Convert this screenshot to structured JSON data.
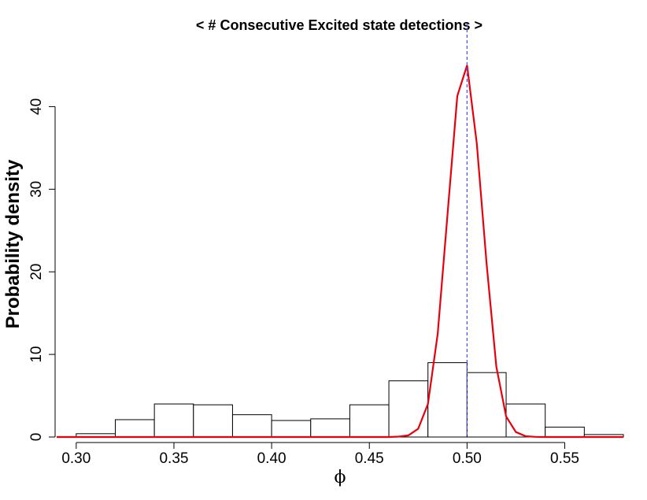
{
  "chart_data": {
    "type": "bar",
    "title": "< # Consecutive Excited state detections >",
    "xlabel": "ϕ",
    "ylabel": "Probability density",
    "xlim": [
      0.29,
      0.58
    ],
    "ylim": [
      0,
      47
    ],
    "x_ticks": [
      "0.30",
      "0.35",
      "0.40",
      "0.45",
      "0.50",
      "0.55"
    ],
    "x_tick_values": [
      0.3,
      0.35,
      0.4,
      0.45,
      0.5,
      0.55
    ],
    "y_ticks": [
      "0",
      "10",
      "20",
      "30",
      "40"
    ],
    "y_tick_values": [
      0,
      10,
      20,
      30,
      40
    ],
    "grid": false,
    "histogram": {
      "bin_edges": [
        0.3,
        0.32,
        0.34,
        0.36,
        0.38,
        0.4,
        0.42,
        0.44,
        0.46,
        0.48,
        0.5,
        0.52,
        0.54,
        0.56,
        0.58
      ],
      "density": [
        0.4,
        2.1,
        4.0,
        3.9,
        2.7,
        2.0,
        2.2,
        3.9,
        6.8,
        9.0,
        7.8,
        4.0,
        1.2,
        0.3
      ],
      "fill": "#ffffff",
      "stroke": "#000000"
    },
    "series": [
      {
        "type": "line",
        "color": "#e8000b",
        "x": [
          0.29,
          0.46,
          0.465,
          0.47,
          0.475,
          0.48,
          0.485,
          0.49,
          0.495,
          0.5,
          0.505,
          0.51,
          0.515,
          0.52,
          0.525,
          0.53,
          0.535,
          0.54,
          0.58
        ],
        "y": [
          0,
          0,
          0.05,
          0.2,
          1.0,
          4.0,
          12.5,
          27.0,
          41.3,
          45.0,
          35.5,
          21.0,
          8.5,
          2.5,
          0.6,
          0.1,
          0.02,
          0,
          0
        ]
      }
    ],
    "vline": {
      "x": 0.5,
      "color": "#5555ee",
      "style": "dashed"
    }
  }
}
